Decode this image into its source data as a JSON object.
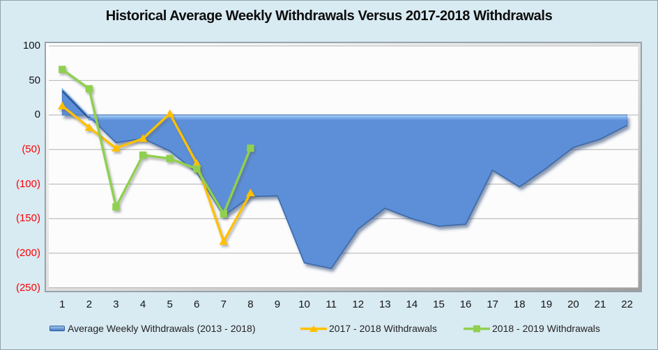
{
  "chart": {
    "title": "Historical Average Weekly Withdrawals Versus 2017-2018 Withdrawals",
    "background_color": "#d8eaf2",
    "plot_background_color": "#fcfcfd",
    "gridline_color": "#b0b0b0",
    "negative_tick_color": "#fe0000",
    "positive_tick_color": "#141414"
  },
  "chart_data": {
    "type": "area",
    "title": "Historical Average Weekly Withdrawals Versus 2017-2018 Withdrawals",
    "categories": [
      1,
      2,
      3,
      4,
      5,
      6,
      7,
      8,
      9,
      10,
      11,
      12,
      13,
      14,
      15,
      16,
      17,
      18,
      19,
      20,
      21,
      22
    ],
    "series": [
      {
        "name": "Average Weekly Withdrawals (2013 - 2018)",
        "type": "area",
        "color": "#5b8fd8",
        "values": [
          38,
          -2,
          -40,
          -34,
          -52,
          -83,
          -146,
          -118,
          -117,
          -214,
          -222,
          -165,
          -135,
          -150,
          -161,
          -158,
          -80,
          -104,
          -77,
          -47,
          -35,
          -15
        ]
      },
      {
        "name": "2017 - 2018 Withdrawals",
        "type": "line",
        "marker": "triangle",
        "color": "#ffc000",
        "values": [
          13,
          -18,
          -48,
          -34,
          2,
          -70,
          -183,
          -113
        ]
      },
      {
        "name": "2018 - 2019 Withdrawals",
        "type": "line",
        "marker": "square",
        "color": "#8fd04f",
        "values": [
          66,
          38,
          -133,
          -58,
          -63,
          -78,
          -143,
          -48
        ]
      }
    ],
    "ylim": [
      -250,
      100
    ],
    "yticks": [
      100,
      50,
      0,
      -50,
      -100,
      -150,
      -200,
      -250
    ],
    "ytick_labels": [
      "100",
      "50",
      "0",
      "(50)",
      "(100)",
      "(150)",
      "(200)",
      "(250)"
    ],
    "grid": true,
    "legend_position": "bottom"
  }
}
